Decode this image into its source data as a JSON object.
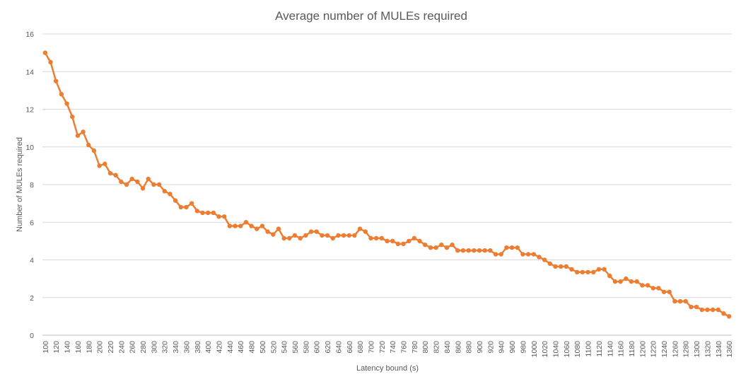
{
  "chart_data": {
    "type": "line",
    "title": "Average number of MULEs required",
    "xlabel": "Latency bound (s)",
    "ylabel": "Number  of  MULEs  required",
    "ylim": [
      0,
      16
    ],
    "yticks": [
      0,
      2,
      4,
      6,
      8,
      10,
      12,
      14,
      16
    ],
    "grid": true,
    "legend": "none",
    "line_color": "#ED7D31",
    "x": [
      100,
      110,
      120,
      130,
      140,
      150,
      160,
      170,
      180,
      190,
      200,
      210,
      220,
      230,
      240,
      250,
      260,
      270,
      280,
      290,
      300,
      310,
      320,
      330,
      340,
      350,
      360,
      370,
      380,
      390,
      400,
      410,
      420,
      430,
      440,
      450,
      460,
      470,
      480,
      490,
      500,
      510,
      520,
      530,
      540,
      550,
      560,
      570,
      580,
      590,
      600,
      610,
      620,
      630,
      640,
      650,
      660,
      670,
      680,
      690,
      700,
      710,
      720,
      730,
      740,
      750,
      760,
      770,
      780,
      790,
      800,
      810,
      820,
      830,
      840,
      850,
      860,
      870,
      880,
      890,
      900,
      910,
      920,
      930,
      940,
      950,
      960,
      970,
      980,
      990,
      1000,
      1010,
      1020,
      1030,
      1040,
      1050,
      1060,
      1070,
      1080,
      1090,
      1100,
      1110,
      1120,
      1130,
      1140,
      1150,
      1160,
      1170,
      1180,
      1190,
      1200,
      1210,
      1220,
      1230,
      1240,
      1250,
      1260,
      1270,
      1280,
      1290,
      1300,
      1310,
      1320,
      1330,
      1340,
      1350,
      1360
    ],
    "xtick_labels": [
      "100",
      "120",
      "140",
      "160",
      "180",
      "200",
      "220",
      "240",
      "260",
      "280",
      "300",
      "320",
      "340",
      "360",
      "380",
      "400",
      "420",
      "440",
      "460",
      "480",
      "500",
      "520",
      "540",
      "560",
      "580",
      "600",
      "620",
      "640",
      "660",
      "680",
      "700",
      "720",
      "740",
      "760",
      "780",
      "800",
      "820",
      "840",
      "860",
      "880",
      "900",
      "920",
      "940",
      "960",
      "980",
      "1000",
      "1020",
      "1040",
      "1060",
      "1080",
      "1100",
      "1120",
      "1140",
      "1160",
      "1180",
      "1200",
      "1220",
      "1240",
      "1260",
      "1280",
      "1300",
      "1320",
      "1340",
      "1360"
    ],
    "series": [
      {
        "values": [
          15.0,
          14.5,
          13.5,
          12.8,
          12.3,
          11.6,
          10.6,
          10.8,
          10.1,
          9.8,
          9.0,
          9.1,
          8.6,
          8.5,
          8.15,
          8.0,
          8.3,
          8.15,
          7.8,
          8.3,
          8.0,
          8.0,
          7.65,
          7.5,
          7.15,
          6.8,
          6.8,
          7.0,
          6.6,
          6.5,
          6.5,
          6.5,
          6.3,
          6.3,
          5.8,
          5.8,
          5.8,
          6.0,
          5.8,
          5.65,
          5.8,
          5.5,
          5.35,
          5.65,
          5.15,
          5.15,
          5.3,
          5.15,
          5.3,
          5.5,
          5.5,
          5.3,
          5.3,
          5.15,
          5.3,
          5.3,
          5.3,
          5.3,
          5.65,
          5.5,
          5.15,
          5.15,
          5.15,
          5.0,
          5.0,
          4.85,
          4.85,
          5.0,
          5.15,
          5.0,
          4.8,
          4.65,
          4.65,
          4.8,
          4.65,
          4.8,
          4.5,
          4.5,
          4.5,
          4.5,
          4.5,
          4.5,
          4.5,
          4.3,
          4.3,
          4.65,
          4.65,
          4.65,
          4.3,
          4.3,
          4.3,
          4.15,
          4.0,
          3.8,
          3.65,
          3.65,
          3.65,
          3.5,
          3.35,
          3.35,
          3.35,
          3.35,
          3.5,
          3.5,
          3.15,
          2.85,
          2.85,
          3.0,
          2.85,
          2.85,
          2.65,
          2.65,
          2.5,
          2.5,
          2.3,
          2.3,
          1.8,
          1.8,
          1.8,
          1.5,
          1.5,
          1.35,
          1.35,
          1.35,
          1.35,
          1.15,
          1.0
        ]
      }
    ]
  }
}
